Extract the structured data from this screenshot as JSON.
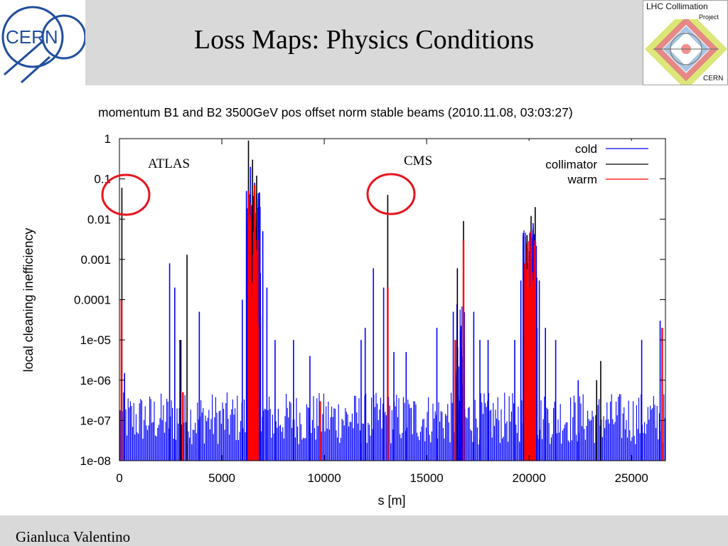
{
  "header": {
    "title": "Loss Maps: Physics Conditions",
    "cern_logo_text": "CERN",
    "lhc_logo": {
      "line1": "LHC Collimation",
      "line2": "Project",
      "line3": "CERN"
    }
  },
  "footer": {
    "presenter": "Gianluca Valentino"
  },
  "annotations": {
    "atlas": "ATLAS",
    "cms": "CMS",
    "circle_color": "#e8141d"
  },
  "colors": {
    "cold": "#0000ff",
    "collimator": "#000000",
    "warm": "#ff0000"
  },
  "chart_data": {
    "type": "bar",
    "title": "momentum B1 and B2 3500GeV pos offset norm stable beams (2010.11.08, 03:03:27)",
    "xlabel": "s [m]",
    "ylabel": "local cleaning inefficiency",
    "xlim": [
      0,
      26659
    ],
    "ylim": [
      1e-08,
      1
    ],
    "yscale": "log",
    "xticks": [
      "0",
      "5000",
      "10000",
      "15000",
      "20000",
      "25000"
    ],
    "yticks": [
      "1e-08",
      "1e-07",
      "1e-06",
      "1e-05",
      "0.0001",
      "0.001",
      "0.01",
      "0.1",
      "1"
    ],
    "legend_position": "top-right",
    "series": [
      {
        "name": "cold",
        "color": "#0000ff",
        "points": [
          [
            250,
            1.5e-06
          ],
          [
            2450,
            0.0008
          ],
          [
            2700,
            0.0002
          ],
          [
            2950,
            1e-05
          ],
          [
            3900,
            5e-05
          ],
          [
            6000,
            0.0001
          ],
          [
            6200,
            0.05
          ],
          [
            6400,
            0.2
          ],
          [
            6600,
            0.08
          ],
          [
            6850,
            0.02
          ],
          [
            7000,
            0.005
          ],
          [
            7200,
            0.0002
          ],
          [
            7600,
            1e-05
          ],
          [
            8500,
            1e-05
          ],
          [
            9300,
            4e-06
          ],
          [
            11800,
            1e-05
          ],
          [
            12000,
            2e-05
          ],
          [
            12400,
            0.0006
          ],
          [
            12900,
            0.0002
          ],
          [
            13400,
            5e-06
          ],
          [
            14000,
            5e-06
          ],
          [
            15500,
            2e-05
          ],
          [
            16300,
            5e-05
          ],
          [
            16800,
            0.0004
          ],
          [
            17300,
            5e-05
          ],
          [
            17600,
            1e-05
          ],
          [
            18000,
            1e-05
          ],
          [
            19300,
            1e-05
          ],
          [
            19600,
            0.0003
          ],
          [
            19900,
            0.004
          ],
          [
            20200,
            0.008
          ],
          [
            20500,
            0.0003
          ],
          [
            20800,
            2e-05
          ],
          [
            21300,
            1e-05
          ],
          [
            22400,
            1e-06
          ],
          [
            25500,
            1e-05
          ],
          [
            26400,
            3e-05
          ]
        ]
      },
      {
        "name": "collimator",
        "color": "#000000",
        "points": [
          [
            120,
            0.06
          ],
          [
            3000,
            1e-05
          ],
          [
            3300,
            0.0013
          ],
          [
            6300,
            0.9
          ],
          [
            6500,
            0.3
          ],
          [
            6700,
            0.12
          ],
          [
            13100,
            0.04
          ],
          [
            16500,
            0.0006
          ],
          [
            16800,
            0.009
          ],
          [
            19900,
            0.004
          ],
          [
            20100,
            0.012
          ],
          [
            20300,
            0.02
          ],
          [
            23300,
            1e-06
          ],
          [
            23500,
            3e-06
          ]
        ]
      },
      {
        "name": "warm",
        "color": "#ff0000",
        "points": [
          [
            100,
            0.0001
          ],
          [
            3100,
            5e-07
          ],
          [
            6300,
            0.05
          ],
          [
            6600,
            0.07
          ],
          [
            9800,
            3e-07
          ],
          [
            13100,
            0.0002
          ],
          [
            16400,
            1e-05
          ],
          [
            16800,
            0.003
          ],
          [
            19800,
            0.0008
          ],
          [
            20100,
            0.005
          ],
          [
            20300,
            0.003
          ],
          [
            26500,
            2e-05
          ]
        ]
      }
    ]
  }
}
